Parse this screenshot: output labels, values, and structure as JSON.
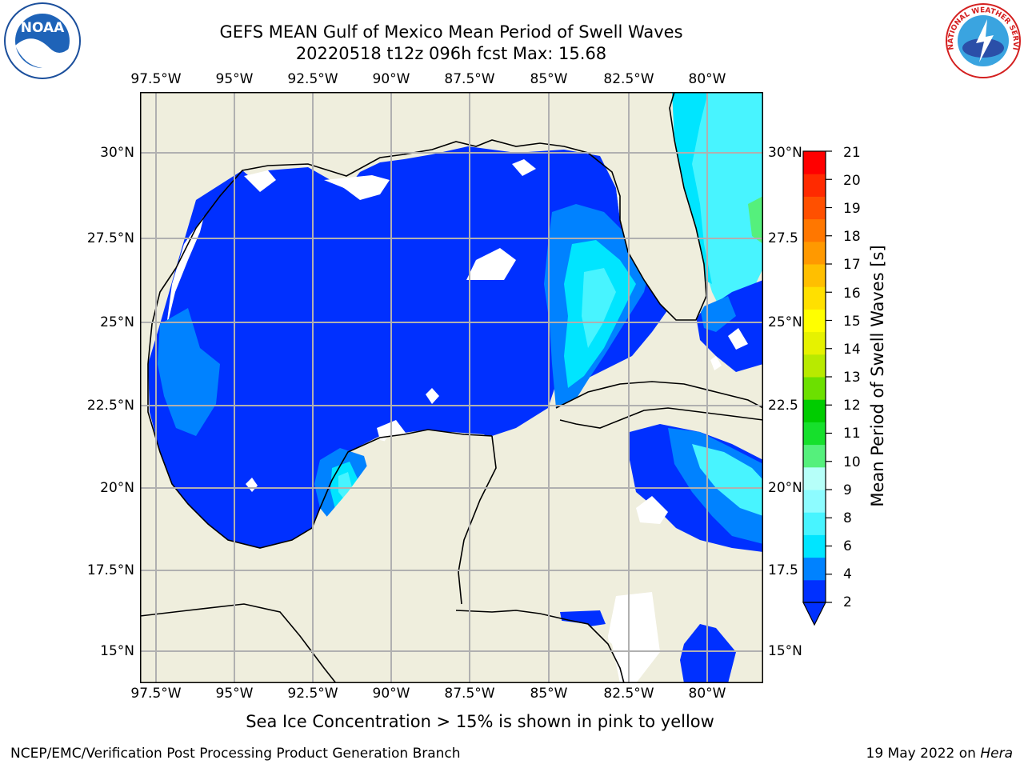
{
  "title": {
    "line1": "GEFS MEAN Gulf of Mexico Mean Period of Swell Waves",
    "line2": "20220518 t12z 096h fcst   Max: 15.68"
  },
  "map": {
    "lon_labels": [
      "97.5°W",
      "95°W",
      "92.5°W",
      "90°W",
      "87.5°W",
      "85°W",
      "82.5°W",
      "80°W"
    ],
    "lat_labels_left": [
      "30°N",
      "27.5°N",
      "25°N",
      "22.5°N",
      "20°N",
      "17.5°N",
      "15°N"
    ],
    "lat_labels_right": [
      "30°N",
      "27.5",
      "25°N",
      "22.5",
      "20°N",
      "17.5",
      "15°N"
    ],
    "colors": {
      "land": "#efeedd",
      "no_data": "#ffffff",
      "grid": "#b0b0b0",
      "coast": "#000000"
    }
  },
  "colorbar": {
    "label": "Mean Period of Swell Waves [s]",
    "ticks": [
      "21",
      "20",
      "19",
      "18",
      "17",
      "16",
      "15",
      "14",
      "13",
      "12",
      "11",
      "10",
      "9",
      "8",
      "6",
      "4",
      "2"
    ],
    "colors_bottom_to_top": [
      "#0030ff",
      "#0082ff",
      "#00e5ff",
      "#48f4ff",
      "#8dfcff",
      "#b6fff9",
      "#55f07c",
      "#16e02c",
      "#00cc00",
      "#6ce000",
      "#b8ea00",
      "#e6f200",
      "#ffff00",
      "#ffe000",
      "#ffbf00",
      "#ff9900",
      "#ff7700",
      "#ff5000",
      "#ff2a00",
      "#ff0000"
    ]
  },
  "logos": {
    "noaa_text": "NOAA",
    "nws_text": "NATIONAL WEATHER SERVICE"
  },
  "note": "Sea Ice Concentration > 15% is shown in pink to yellow",
  "footer": {
    "left": "NCEP/EMC/Verification Post Processing Product Generation Branch",
    "right_prefix": "19 May 2022 on ",
    "right_host": "Hera"
  }
}
